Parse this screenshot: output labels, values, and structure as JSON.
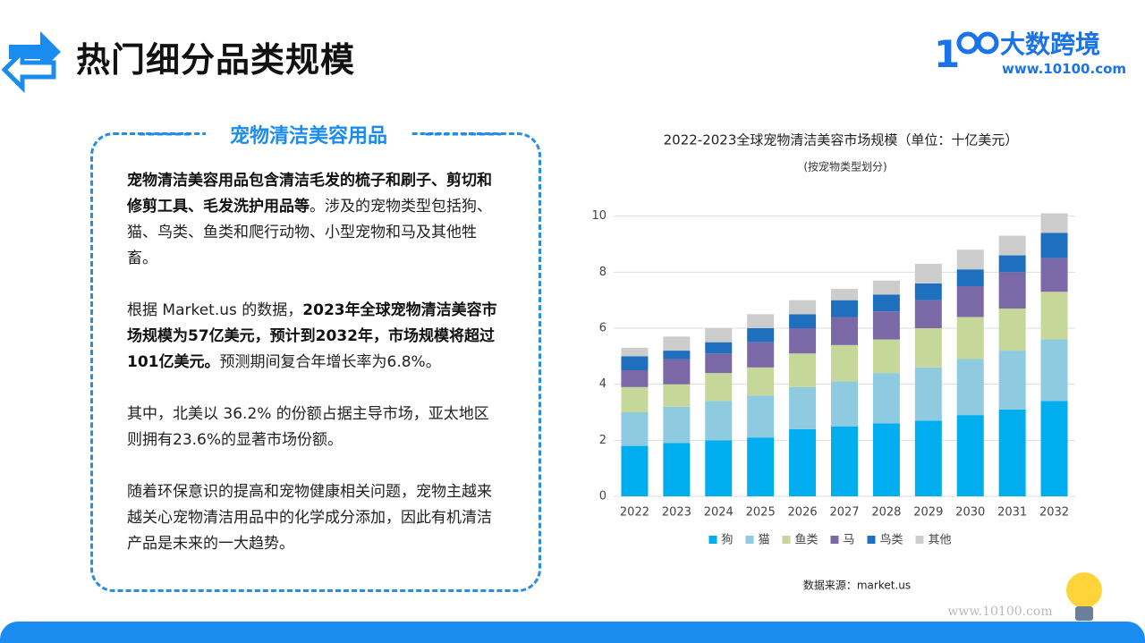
{
  "header": {
    "title": "热门细分品类规模",
    "brand": "大数跨境",
    "url": "www.10100.com"
  },
  "panel": {
    "heading": "宠物清洁美容用品",
    "paragraphs": [
      [
        {
          "text": "宠物清洁美容用品包含清洁毛发的梳子和刷子、剪切和修剪工具、毛发洗护用品等",
          "bold": true
        },
        {
          "text": "。涉及的宠物类型包括狗、猫、鸟类、鱼类和爬行动物、小型宠物和马及其他牲畜。",
          "bold": false
        }
      ],
      [
        {
          "text": "根据 Market.us 的数据，",
          "bold": false
        },
        {
          "text": "2023年全球宠物清洁美容市场规模为57亿美元，预计到2032年，市场规模将超过101亿美元。",
          "bold": true
        },
        {
          "text": "预测期间复合年增长率为6.8%。",
          "bold": false
        }
      ],
      [
        {
          "text": "其中，北美以 36.2% 的份额占据主导市场，亚太地区则拥有23.6%的显著市场份额。",
          "bold": false
        }
      ],
      [
        {
          "text": "随着环保意识的提高和宠物健康相关问题，宠物主越来越关心宠物清洁用品中的化学成分添加，因此有机清洁产品是未来的一大趋势。",
          "bold": false
        }
      ]
    ]
  },
  "chart_data": {
    "type": "stacked-bar",
    "title": "2022-2023全球宠物清洁美容市场规模（单位：十亿美元）",
    "subtitle": "(按宠物类型划分)",
    "categories": [
      "2022",
      "2023",
      "2024",
      "2025",
      "2026",
      "2027",
      "2028",
      "2029",
      "2030",
      "2031",
      "2032"
    ],
    "series": [
      {
        "name": "狗",
        "color": "#00aeef",
        "values": [
          1.8,
          1.9,
          2.0,
          2.1,
          2.4,
          2.5,
          2.6,
          2.7,
          2.9,
          3.1,
          3.4
        ]
      },
      {
        "name": "猫",
        "color": "#8fcbe0",
        "values": [
          1.2,
          1.3,
          1.4,
          1.5,
          1.5,
          1.6,
          1.8,
          1.9,
          2.0,
          2.1,
          2.2
        ]
      },
      {
        "name": "鱼类",
        "color": "#c5d89a",
        "values": [
          0.9,
          0.8,
          1.0,
          1.0,
          1.2,
          1.3,
          1.2,
          1.4,
          1.5,
          1.5,
          1.7
        ]
      },
      {
        "name": "马",
        "color": "#7b68a6",
        "values": [
          0.6,
          0.9,
          0.7,
          0.9,
          0.9,
          1.0,
          1.0,
          1.0,
          1.1,
          1.3,
          1.2
        ]
      },
      {
        "name": "鸟类",
        "color": "#1f6fbf",
        "values": [
          0.5,
          0.3,
          0.4,
          0.5,
          0.5,
          0.6,
          0.6,
          0.6,
          0.6,
          0.6,
          0.9
        ]
      },
      {
        "name": "其他",
        "color": "#cccccc",
        "values": [
          0.3,
          0.5,
          0.5,
          0.5,
          0.5,
          0.4,
          0.5,
          0.7,
          0.7,
          0.7,
          0.7
        ]
      }
    ],
    "ylim": [
      0,
      10.5
    ],
    "yticks": [
      0,
      2,
      4,
      6,
      8,
      10
    ],
    "grid": true,
    "legend": "bottom",
    "source": "数据来源：market.us"
  },
  "footer": {
    "watermark": "www.10100.com"
  }
}
